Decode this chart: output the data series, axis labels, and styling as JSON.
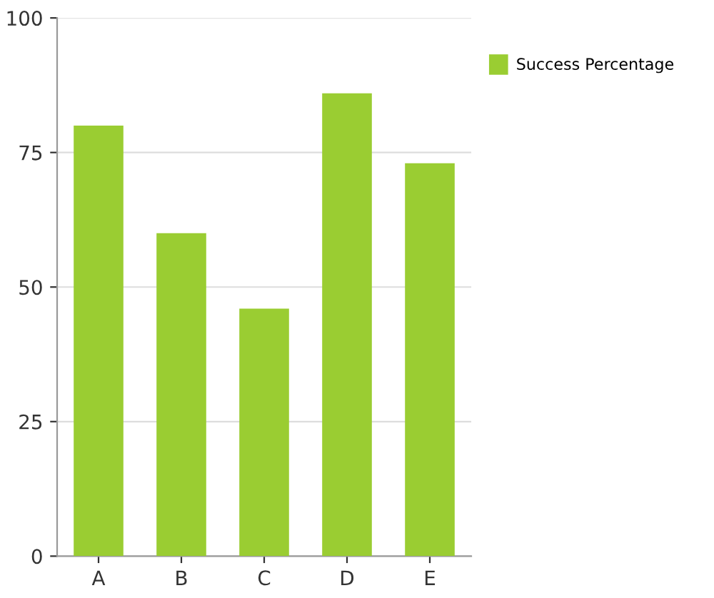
{
  "chart_data": {
    "type": "bar",
    "categories": [
      "A",
      "B",
      "C",
      "D",
      "E"
    ],
    "series": [
      {
        "name": "Success Percentage",
        "color": "#9acd32",
        "values": [
          80,
          60,
          46,
          86,
          73
        ]
      }
    ],
    "ylim": [
      0,
      100
    ],
    "yticks": [
      0,
      25,
      50,
      75,
      100
    ],
    "grid": "y",
    "legend": "top right"
  }
}
